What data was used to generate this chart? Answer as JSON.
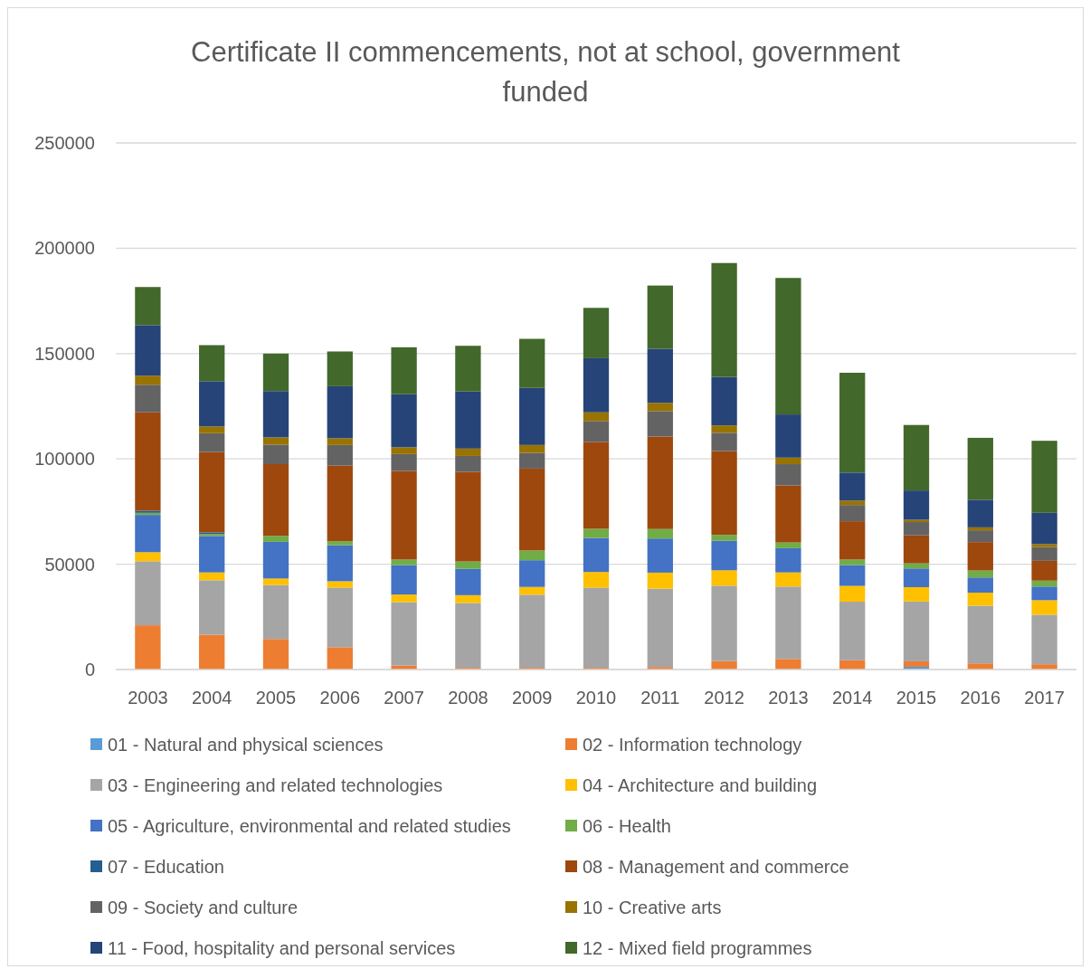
{
  "chart_data": {
    "type": "bar",
    "stacked": true,
    "title": "Certificate II commencements, not at school, government funded",
    "categories": [
      "2003",
      "2004",
      "2005",
      "2006",
      "2007",
      "2008",
      "2009",
      "2010",
      "2011",
      "2012",
      "2013",
      "2014",
      "2015",
      "2016",
      "2017"
    ],
    "ylim": [
      0,
      250000
    ],
    "yticks": [
      0,
      50000,
      100000,
      150000,
      200000,
      250000
    ],
    "grid": "y",
    "legend": "bottom",
    "series": [
      {
        "name": "01 - Natural and physical sciences",
        "color": "#5b9bd5",
        "values": [
          0,
          0,
          0,
          0,
          0,
          0,
          0,
          0,
          0,
          0,
          0,
          0,
          1300,
          0,
          0
        ]
      },
      {
        "name": "02 - Information technology",
        "color": "#ed7d31",
        "values": [
          21000,
          16500,
          14500,
          10600,
          1900,
          800,
          800,
          800,
          1200,
          4000,
          5000,
          4400,
          2600,
          2900,
          2500
        ]
      },
      {
        "name": "03 - Engineering and related technologies",
        "color": "#a5a5a5",
        "values": [
          30400,
          25900,
          25600,
          28300,
          30100,
          30800,
          34700,
          38100,
          37200,
          35800,
          34400,
          27800,
          28400,
          27400,
          23500
        ]
      },
      {
        "name": "04 - Architecture and building",
        "color": "#ffc000",
        "values": [
          4300,
          3700,
          3100,
          3000,
          3600,
          3700,
          3700,
          7400,
          7600,
          7300,
          6700,
          7500,
          6800,
          6200,
          6900
        ]
      },
      {
        "name": "05 - Agriculture, environmental and related studies",
        "color": "#4472c4",
        "values": [
          17700,
          17300,
          17400,
          17100,
          14000,
          12500,
          12700,
          16200,
          16200,
          14000,
          11500,
          9900,
          8900,
          7200,
          6500
        ]
      },
      {
        "name": "06 - Health",
        "color": "#70ad47",
        "values": [
          1000,
          900,
          2900,
          1900,
          2600,
          3500,
          4600,
          4300,
          4500,
          2800,
          2700,
          2600,
          2400,
          3300,
          2800
        ]
      },
      {
        "name": "07 - Education",
        "color": "#255e91",
        "values": [
          1000,
          800,
          0,
          0,
          0,
          0,
          0,
          0,
          0,
          0,
          0,
          0,
          0,
          0,
          0
        ]
      },
      {
        "name": "08 - Management and commerce",
        "color": "#9e480e",
        "values": [
          46700,
          38200,
          34000,
          35900,
          42100,
          42500,
          38900,
          41300,
          43900,
          39800,
          27100,
          18200,
          13300,
          13500,
          9400
        ]
      },
      {
        "name": "09 - Society and culture",
        "color": "#636363",
        "values": [
          13100,
          8900,
          9300,
          9800,
          8000,
          7600,
          7500,
          9900,
          12100,
          8700,
          10100,
          7700,
          6300,
          5600,
          6500
        ]
      },
      {
        "name": "10 - Creative arts",
        "color": "#997300",
        "values": [
          4300,
          3200,
          3400,
          3200,
          3200,
          3500,
          3700,
          4100,
          3900,
          3500,
          3100,
          2100,
          1100,
          1400,
          1500
        ]
      },
      {
        "name": "11 - Food, hospitality and personal services",
        "color": "#264478",
        "values": [
          24000,
          21500,
          22000,
          24700,
          25200,
          27100,
          27100,
          25700,
          25700,
          23000,
          20500,
          13300,
          13900,
          13100,
          14800
        ]
      },
      {
        "name": "12 - Mixed field programmes",
        "color": "#43682b",
        "values": [
          18100,
          17100,
          17800,
          16500,
          22300,
          21700,
          23300,
          23900,
          30000,
          54100,
          64800,
          47400,
          31100,
          29400,
          34200
        ]
      }
    ]
  }
}
